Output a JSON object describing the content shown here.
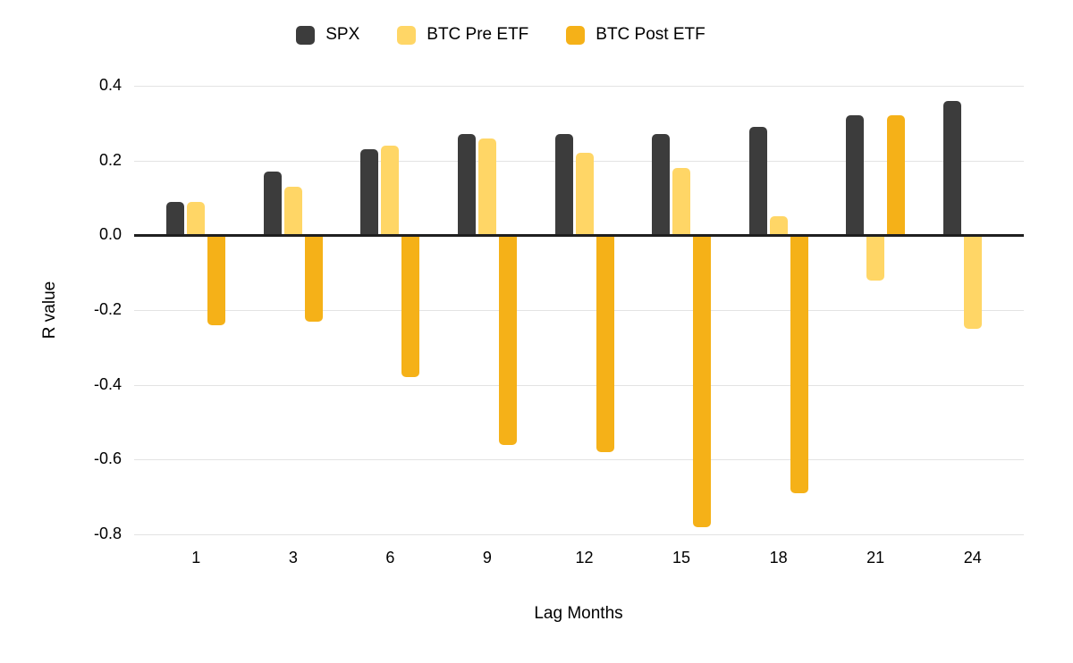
{
  "chart_data": {
    "type": "bar",
    "title": "",
    "xlabel": "Lag Months",
    "ylabel": "R value",
    "categories": [
      "1",
      "3",
      "6",
      "9",
      "12",
      "15",
      "18",
      "21",
      "24"
    ],
    "series": [
      {
        "name": "SPX",
        "color": "#3C3C3C",
        "values": [
          0.09,
          0.17,
          0.23,
          0.27,
          0.27,
          0.27,
          0.29,
          0.32,
          0.36
        ]
      },
      {
        "name": "BTC Pre ETF",
        "color": "#FFD666",
        "values": [
          0.09,
          0.13,
          0.24,
          0.26,
          0.22,
          0.18,
          0.05,
          -0.12,
          -0.25
        ]
      },
      {
        "name": "BTC Post ETF",
        "color": "#F5B118",
        "values": [
          -0.24,
          -0.23,
          -0.38,
          -0.56,
          -0.58,
          -0.78,
          -0.69,
          0.32,
          null
        ]
      }
    ],
    "ylim": [
      -0.8,
      0.4
    ],
    "ytick_labels": [
      "0.4",
      "0.2",
      "0.0",
      "-0.2",
      "-0.4",
      "-0.6",
      "-0.8"
    ],
    "grid": true,
    "legend_position": "top",
    "background": "#FFFFFF",
    "gridline_color": "#E3E3E3",
    "zero_line_color": "#1F1F1F",
    "text_color": "#000000"
  }
}
